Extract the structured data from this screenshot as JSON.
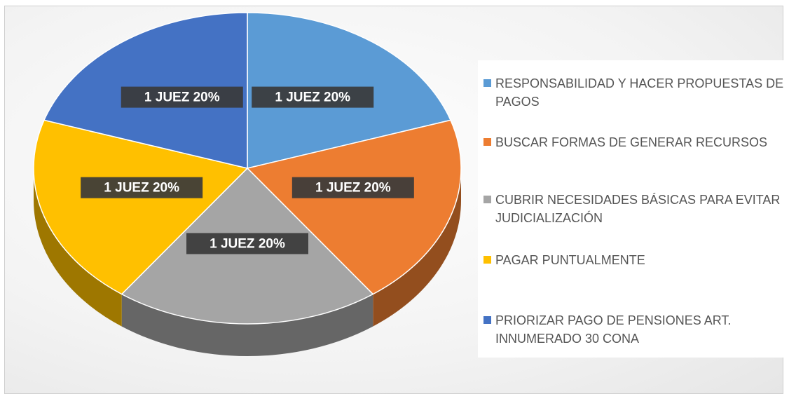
{
  "chart_data": {
    "type": "pie",
    "categories": [
      "RESPONSABILIDAD Y HACER PROPUESTAS DE PAGOS",
      "BUSCAR FORMAS DE GENERAR RECURSOS",
      "CUBRIR NECESIDADES BÁSICAS PARA EVITAR JUDICIALIZACIÓN",
      "PAGAR PUNTUALMENTE",
      "PRIORIZAR PAGO DE PENSIONES ART. INNUMERADO 30 CONA"
    ],
    "values": [
      20,
      20,
      20,
      20,
      20
    ],
    "value_labels": [
      "1 JUEZ 20%",
      "1 JUEZ 20%",
      "1 JUEZ 20%",
      "1 JUEZ 20%",
      "1 JUEZ 20%"
    ],
    "colors": [
      "#5b9bd5",
      "#ed7d31",
      "#a5a5a5",
      "#ffc000",
      "#4472c4"
    ],
    "legend": "right"
  }
}
